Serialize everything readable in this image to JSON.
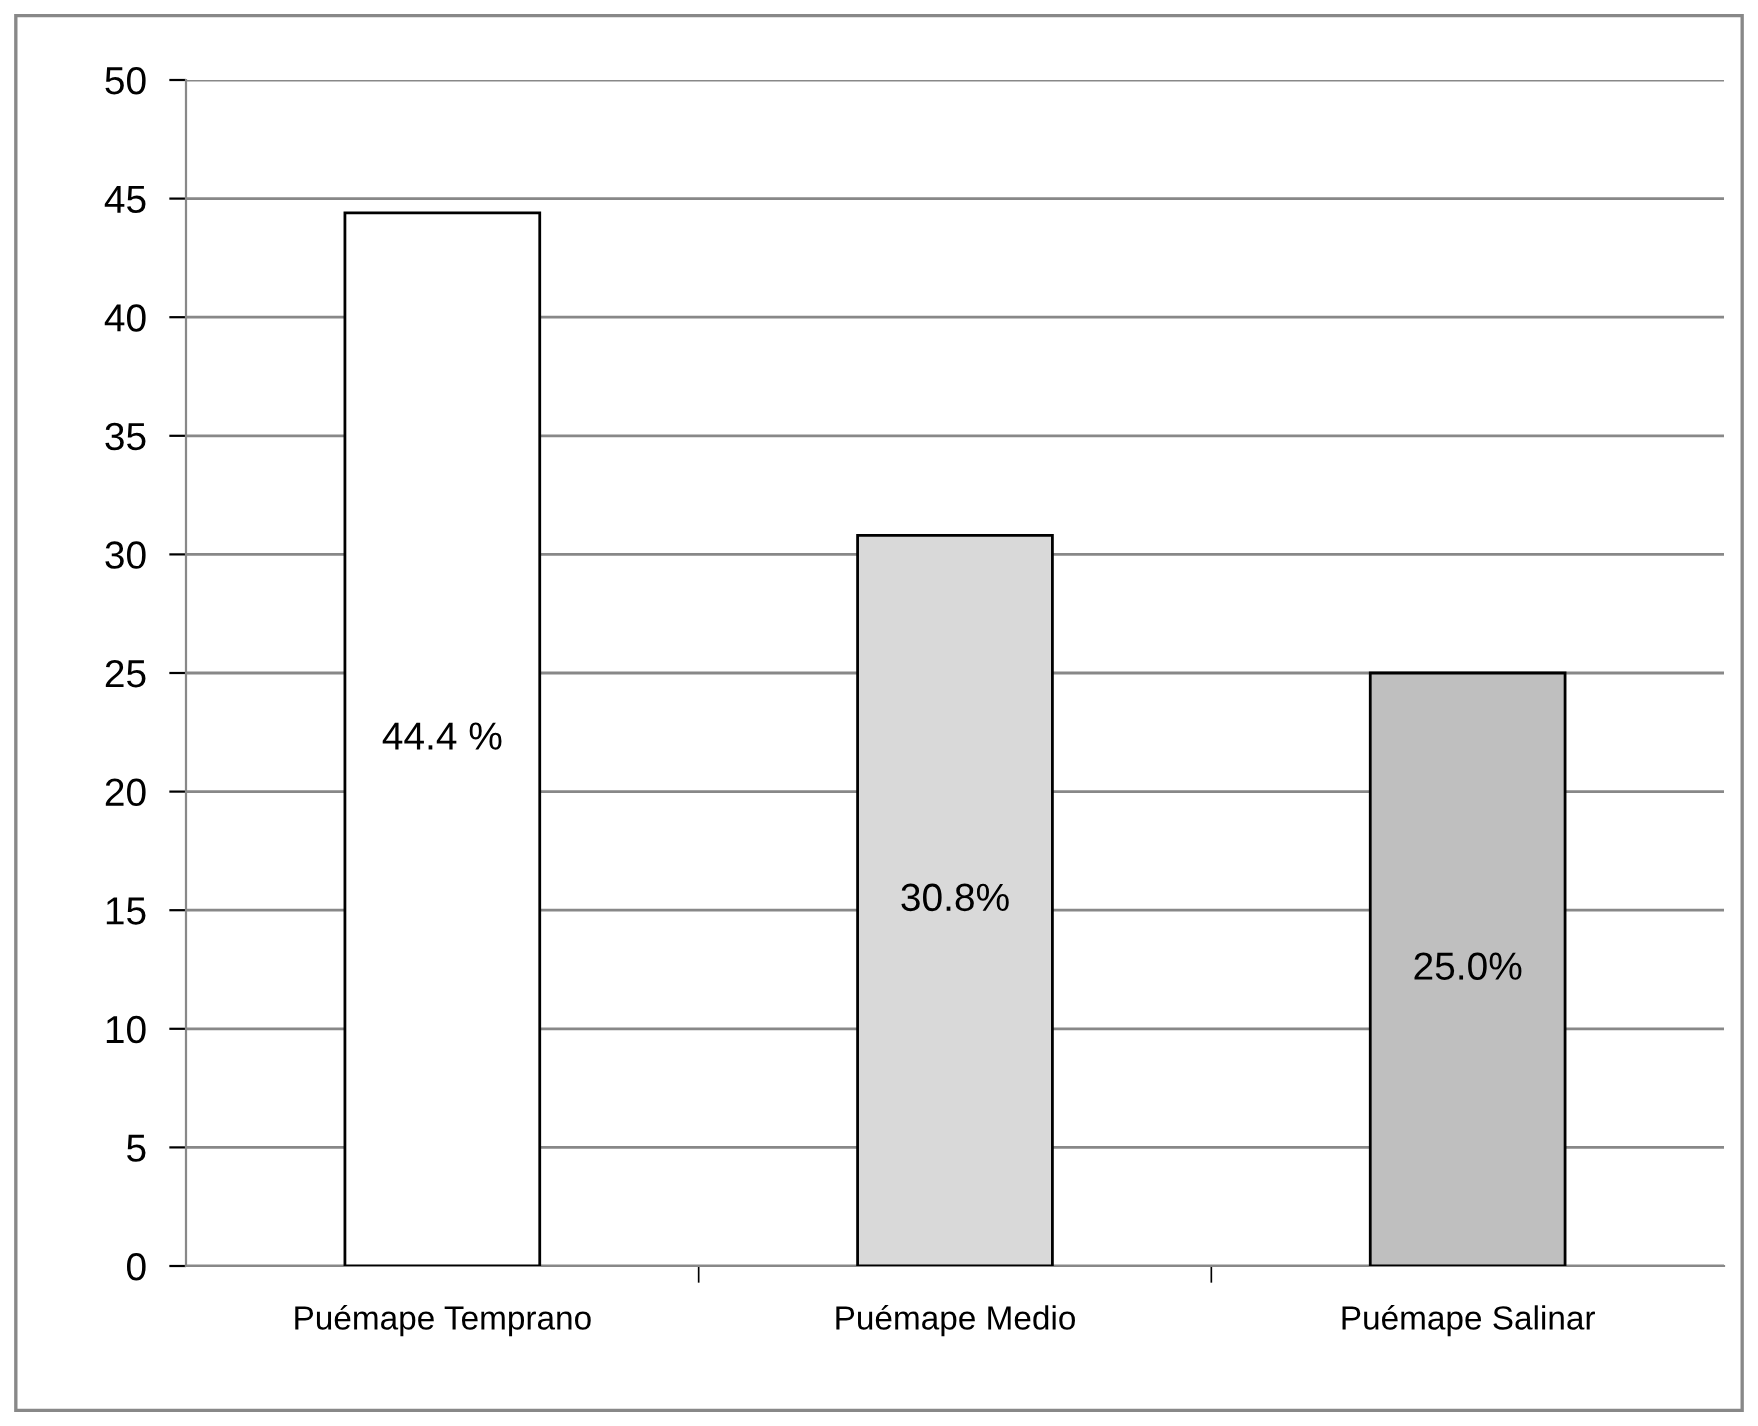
{
  "chart_data": {
    "type": "bar",
    "categories": [
      "Puémape Temprano",
      "Puémape Medio",
      "Puémape Salinar"
    ],
    "values": [
      44.4,
      30.8,
      25.0
    ],
    "colors": [
      "#ffffff",
      "#d9d9d9",
      "#bfbfbf"
    ],
    "value_labels": [
      "44.4 %",
      "30.8%",
      "25.0%"
    ],
    "ylim": [
      0,
      50
    ],
    "yticks": [
      0,
      5,
      10,
      15,
      20,
      25,
      30,
      35,
      40,
      45,
      50
    ],
    "grid": "y"
  }
}
